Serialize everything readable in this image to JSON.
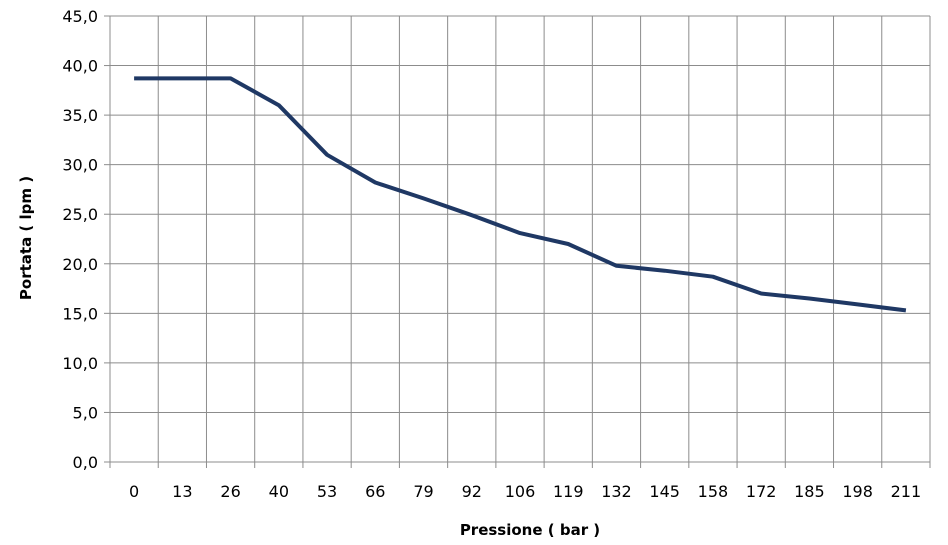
{
  "chart_data": {
    "type": "line",
    "categories": [
      "0",
      "13",
      "26",
      "40",
      "53",
      "66",
      "79",
      "92",
      "106",
      "119",
      "132",
      "145",
      "158",
      "172",
      "185",
      "198",
      "211"
    ],
    "series": [
      {
        "values": [
          38.7,
          38.7,
          38.7,
          36.0,
          31.0,
          28.2,
          26.6,
          24.9,
          23.1,
          22.0,
          19.8,
          19.3,
          18.7,
          17.0,
          16.5,
          15.9,
          15.3
        ]
      }
    ],
    "xlabel": "Pressione ( bar )",
    "ylabel": "Portata ( lpm )",
    "ylim": [
      0,
      45
    ],
    "ytick_step": 5,
    "ytick_labels": [
      "0,0",
      "5,0",
      "10,0",
      "15,0",
      "20,0",
      "25,0",
      "30,0",
      "35,0",
      "40,0",
      "45,0"
    ],
    "grid": true,
    "legend": "none",
    "line_color": "#1f3864"
  }
}
